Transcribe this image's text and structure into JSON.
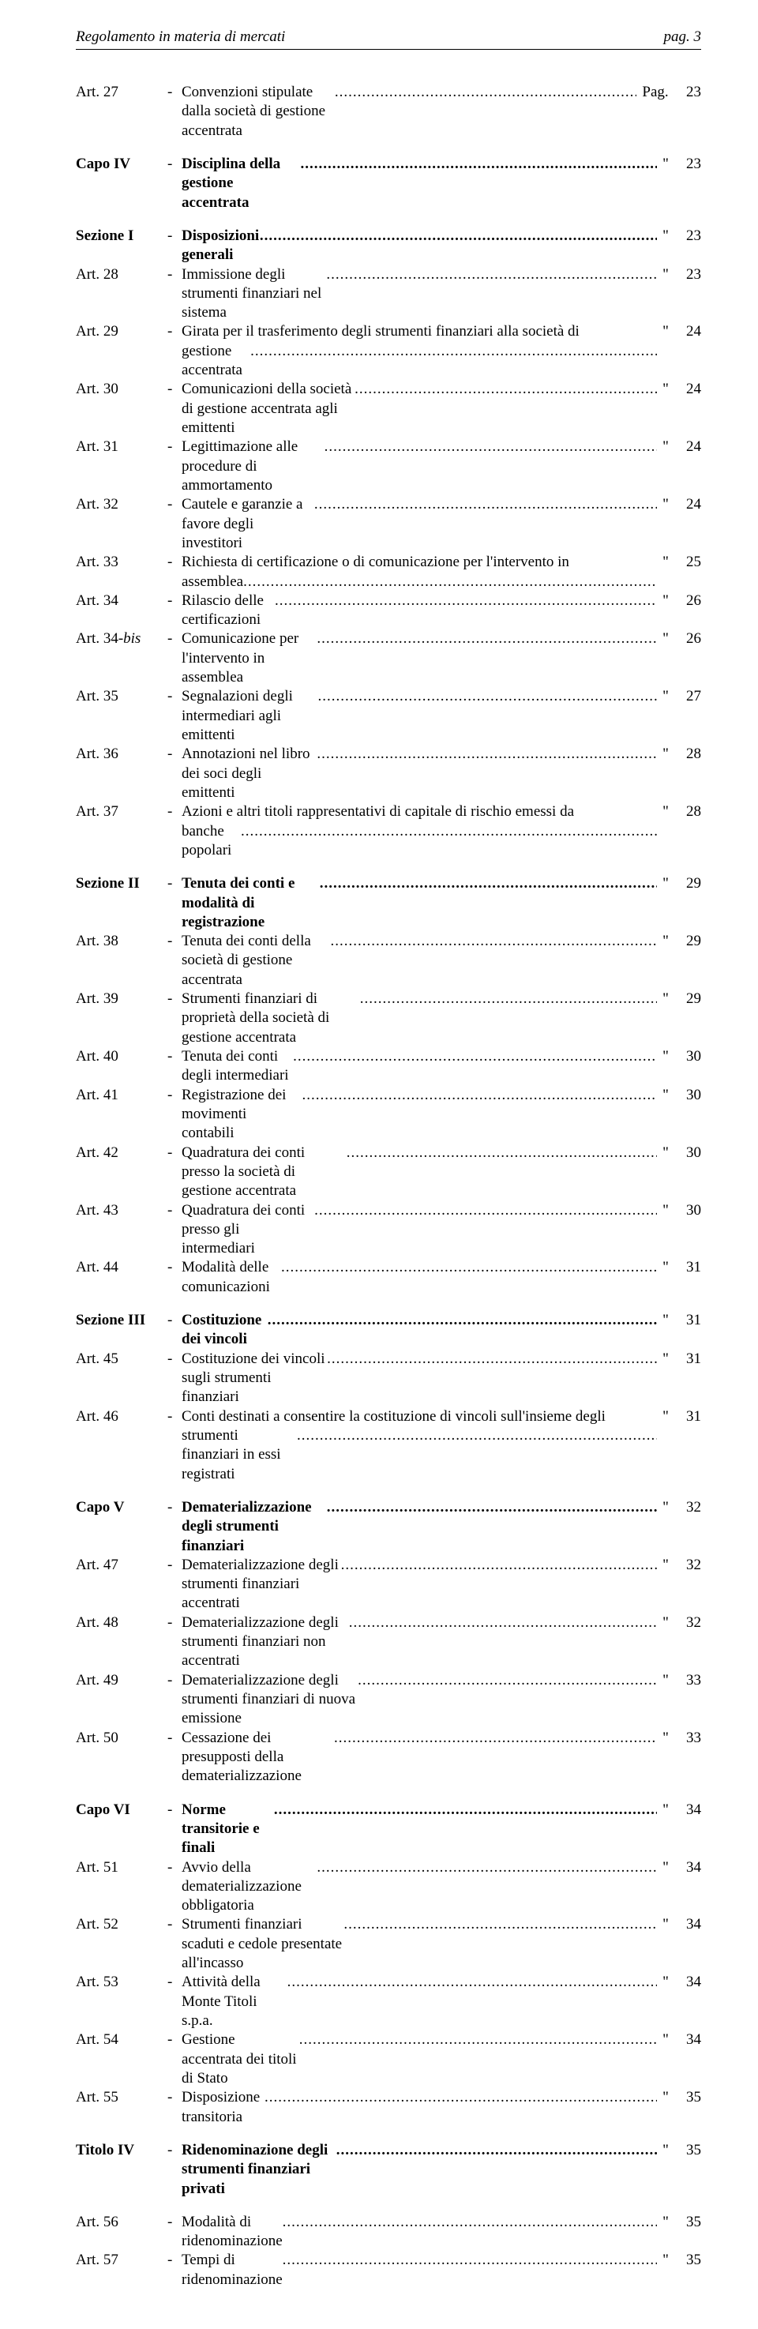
{
  "header": {
    "left": "Regolamento in materia di mercati",
    "right": "pag. 3"
  },
  "dots": ".....................................................................................................................................................",
  "pag_label": "Pag.",
  "quote": "\"",
  "groups": [
    [
      {
        "label": "Art. 27",
        "desc": "Convenzioni stipulate dalla società di gestione accentrata",
        "q": "Pag.",
        "pg": "23",
        "wideq": true
      }
    ],
    [
      {
        "label": "Capo IV",
        "desc": "Disciplina della gestione accentrata",
        "pg": "23",
        "bold": true
      }
    ],
    [
      {
        "label": "Sezione I",
        "desc": "Disposizioni generali",
        "pg": "23",
        "bold": true
      },
      {
        "label": "Art. 28",
        "desc": "Immissione degli strumenti finanziari nel sistema",
        "pg": "23"
      },
      {
        "label": "Art. 29",
        "desc": "Girata per il trasferimento degli strumenti finanziari alla società di",
        "cont": "gestione accentrata",
        "pg": "24"
      },
      {
        "label": "Art. 30",
        "desc": "Comunicazioni della società di gestione accentrata agli emittenti",
        "pg": "24"
      },
      {
        "label": "Art. 31",
        "desc": "Legittimazione alle procedure di ammortamento",
        "pg": "24"
      },
      {
        "label": "Art. 32",
        "desc": "Cautele e garanzie a favore degli investitori",
        "pg": "24"
      },
      {
        "label": "Art. 33",
        "desc": "Richiesta di certificazione o di comunicazione per l'intervento in",
        "cont": "assemblea",
        "pg": "25"
      },
      {
        "label": "Art. 34",
        "desc": "Rilascio delle certificazioni",
        "pg": "26"
      },
      {
        "label": "Art. 34-bis",
        "desc": "Comunicazione per l'intervento in assemblea",
        "pg": "26",
        "italic_label": true
      },
      {
        "label": "Art. 35",
        "desc": "Segnalazioni degli intermediari agli emittenti",
        "pg": "27"
      },
      {
        "label": "Art. 36",
        "desc": "Annotazioni nel libro dei soci degli emittenti",
        "pg": "28"
      },
      {
        "label": "Art. 37",
        "desc": "Azioni e altri titoli rappresentativi di capitale di rischio emessi da",
        "cont": "banche popolari",
        "pg": "28"
      }
    ],
    [
      {
        "label": "Sezione II",
        "desc": "Tenuta dei conti e modalità di registrazione",
        "pg": "29",
        "bold": true
      },
      {
        "label": "Art. 38",
        "desc": "Tenuta dei conti della società di gestione accentrata",
        "pg": "29"
      },
      {
        "label": "Art. 39",
        "desc": "Strumenti finanziari di proprietà della società di gestione accentrata",
        "pg": "29"
      },
      {
        "label": "Art. 40",
        "desc": "Tenuta dei conti degli intermediari",
        "pg": "30"
      },
      {
        "label": "Art. 41",
        "desc": "Registrazione dei movimenti contabili",
        "pg": "30"
      },
      {
        "label": "Art. 42",
        "desc": "Quadratura dei conti presso la società di gestione accentrata",
        "pg": "30"
      },
      {
        "label": "Art. 43",
        "desc": "Quadratura dei conti presso gli intermediari",
        "pg": "30"
      },
      {
        "label": "Art. 44",
        "desc": "Modalità delle comunicazioni",
        "pg": "31"
      }
    ],
    [
      {
        "label": "Sezione III",
        "desc": "Costituzione dei vincoli",
        "pg": "31",
        "bold": true
      },
      {
        "label": "Art. 45",
        "desc": "Costituzione dei vincoli sugli strumenti finanziari",
        "pg": "31"
      },
      {
        "label": "Art. 46",
        "desc": "Conti destinati a consentire la costituzione di vincoli sull'insieme degli",
        "cont": "strumenti finanziari in essi registrati",
        "pg": "31"
      }
    ],
    [
      {
        "label": "Capo V",
        "desc": "Dematerializzazione degli strumenti finanziari",
        "pg": "32",
        "bold": true
      },
      {
        "label": "Art. 47",
        "desc": "Dematerializzazione degli strumenti finanziari accentrati",
        "pg": "32"
      },
      {
        "label": "Art. 48",
        "desc": "Dematerializzazione degli strumenti finanziari non accentrati",
        "pg": "32"
      },
      {
        "label": "Art. 49",
        "desc": "Dematerializzazione degli strumenti finanziari di nuova emissione",
        "pg": "33"
      },
      {
        "label": "Art. 50",
        "desc": "Cessazione dei presupposti della dematerializzazione",
        "pg": "33"
      }
    ],
    [
      {
        "label": "Capo VI",
        "desc": "Norme transitorie e finali",
        "pg": "34",
        "bold": true
      },
      {
        "label": "Art. 51",
        "desc": "Avvio della dematerializzazione obbligatoria",
        "pg": "34"
      },
      {
        "label": "Art. 52",
        "desc": "Strumenti finanziari scaduti e cedole presentate all'incasso",
        "pg": "34"
      },
      {
        "label": "Art. 53",
        "desc": "Attività della Monte Titoli s.p.a.",
        "pg": "34"
      },
      {
        "label": "Art. 54",
        "desc": "Gestione accentrata dei titoli di Stato",
        "pg": "34"
      },
      {
        "label": "Art. 55",
        "desc": "Disposizione transitoria",
        "pg": "35"
      }
    ],
    [
      {
        "label": "Titolo IV",
        "desc": "Ridenominazione degli strumenti finanziari privati",
        "pg": "35",
        "bold": true
      }
    ],
    [
      {
        "label": "Art. 56",
        "desc": "Modalità di ridenominazione",
        "pg": "35"
      },
      {
        "label": "Art. 57",
        "desc": "Tempi di ridenominazione",
        "pg": "35"
      }
    ]
  ]
}
